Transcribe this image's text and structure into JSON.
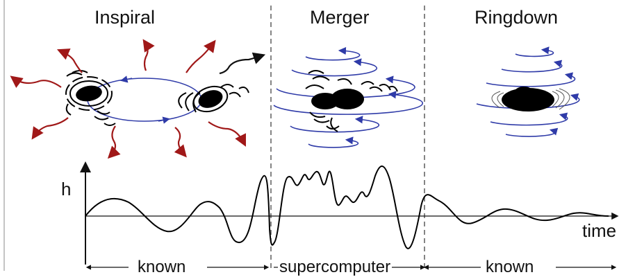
{
  "phases": {
    "inspiral": "Inspiral",
    "merger": "Merger",
    "ringdown": "Ringdown"
  },
  "axis": {
    "y_label": "h",
    "x_label": "time"
  },
  "regions": {
    "left": "known",
    "middle": "supercomputer",
    "right": "known"
  },
  "colors": {
    "wave_arrows": "#a01818",
    "orbit_lines": "#2f3ba8",
    "ink": "#111111"
  }
}
